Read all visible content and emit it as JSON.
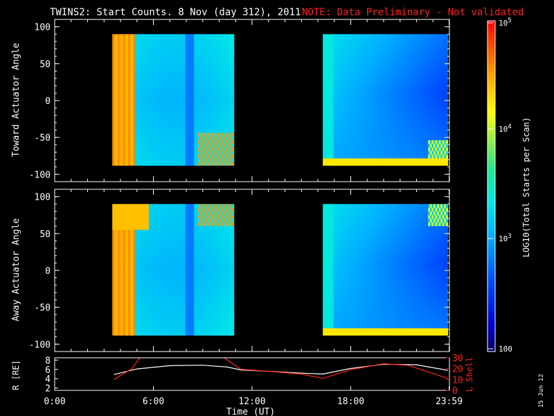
{
  "title": {
    "main": "TWINS2: Start Counts.  8 Nov (day 312), 2011",
    "note": "NOTE: Data Preliminary - Not validated"
  },
  "footer_date": "15 Jun 12",
  "colors": {
    "background": "#000000",
    "foreground": "#ffffff",
    "note": "#ff2020",
    "l_shell": "#ff2020",
    "r_line": "#ffffff"
  },
  "chart_data": [
    {
      "type": "heatmap",
      "id": "toward",
      "ylabel": "Toward Actuator Angle",
      "ylim": [
        -110,
        110
      ],
      "yticks": [
        100,
        50,
        0,
        -50,
        -100
      ],
      "xlim_hours": [
        0,
        24
      ],
      "data_segments_hours": [
        [
          3.5,
          10.9
        ],
        [
          16.3,
          23.9
        ]
      ],
      "angle_coverage": [
        -88,
        90
      ],
      "colormap": "rainbow (log scale)"
    },
    {
      "type": "heatmap",
      "id": "away",
      "ylabel": "Away Actuator Angle",
      "ylim": [
        -110,
        110
      ],
      "yticks": [
        100,
        50,
        0,
        -50,
        -100
      ],
      "xlim_hours": [
        0,
        24
      ],
      "data_segments_hours": [
        [
          3.5,
          10.9
        ],
        [
          16.3,
          23.9
        ]
      ],
      "angle_coverage": [
        -88,
        90
      ],
      "colormap": "rainbow (log scale)"
    },
    {
      "type": "line",
      "id": "orbit",
      "ylabel_left": "R [RE]",
      "ylabel_right": "L Shell",
      "xlabel": "Time (UT)",
      "xticks": [
        {
          "h": 0,
          "label": "0:00"
        },
        {
          "h": 6,
          "label": "6:00"
        },
        {
          "h": 12,
          "label": "12:00"
        },
        {
          "h": 18,
          "label": "18:00"
        },
        {
          "h": 23.98,
          "label": "23:59"
        }
      ],
      "left_ylim": [
        1.5,
        8.5
      ],
      "left_yticks": [
        2,
        4,
        6,
        8
      ],
      "right_ylim": [
        0,
        30
      ],
      "right_yticks": [
        0,
        10,
        20,
        30
      ],
      "series": [
        {
          "axis": "left",
          "x": [
            3.6,
            5.0,
            7.0,
            9.0,
            10.5,
            11.3,
            13.0,
            15.0,
            16.3,
            18.0,
            20.0,
            22.0,
            23.9
          ],
          "y": [
            4.9,
            6.1,
            6.8,
            6.9,
            6.5,
            5.9,
            5.6,
            5.2,
            5.0,
            6.2,
            7.1,
            7.0,
            5.8
          ]
        },
        {
          "axis": "right",
          "x": [
            3.6,
            4.7,
            5.3,
            10.0,
            10.4,
            11.3,
            13.0,
            15.0,
            16.3,
            18.0,
            20.0,
            21.5,
            23.9
          ],
          "y": [
            10,
            20,
            33,
            33,
            29,
            19.5,
            17.5,
            15,
            11,
            19,
            24.5,
            23,
            11
          ]
        }
      ]
    }
  ],
  "colorbar": {
    "label": "LOG10(Total Starts per Scan)",
    "ticks": [
      "10^5",
      "10^4",
      "10^3",
      "100"
    ]
  }
}
